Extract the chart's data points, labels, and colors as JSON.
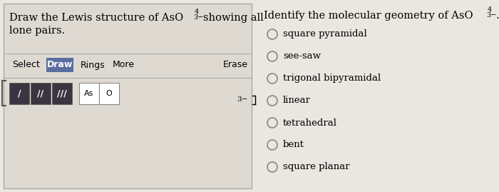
{
  "bg_color": "#eae7e1",
  "left_panel_bg": "#dedad2",
  "left_panel_border": "#999990",
  "right_panel_bg": "#eae7e1",
  "title_left_part1": "Draw the Lewis structure of AsO",
  "title_left_sub": "4",
  "title_left_sup": "3−",
  "title_left_part2": " showing all",
  "title_left_line2": "lone pairs.",
  "title_right_part1": "Identify the molecular geometry of AsO",
  "title_right_sub": "4",
  "title_right_sup": "3−",
  "title_right_period": ".",
  "toolbar_select": "Select",
  "toolbar_draw": "Draw",
  "toolbar_rings": "Rings",
  "toolbar_more": "More",
  "toolbar_erase": "Erase",
  "bond_icons": [
    "/",
    "//",
    "///"
  ],
  "element_boxes": [
    "As",
    "O"
  ],
  "label_3minus": "3−",
  "choices": [
    "square pyramidal",
    "see-saw",
    "trigonal bipyramidal",
    "linear",
    "tetrahedral",
    "bent",
    "square planar"
  ],
  "font_size_title": 10.5,
  "font_size_toolbar": 9,
  "font_size_choices": 9.5,
  "draw_btn_color": "#5a6ea0",
  "bond_btn_color": "#3a3540",
  "toolbar_divider_color": "#aaaaaa",
  "panel_border_color": "#aaa9a0",
  "left_bracket_color": "#555550",
  "circle_color": "#888880"
}
